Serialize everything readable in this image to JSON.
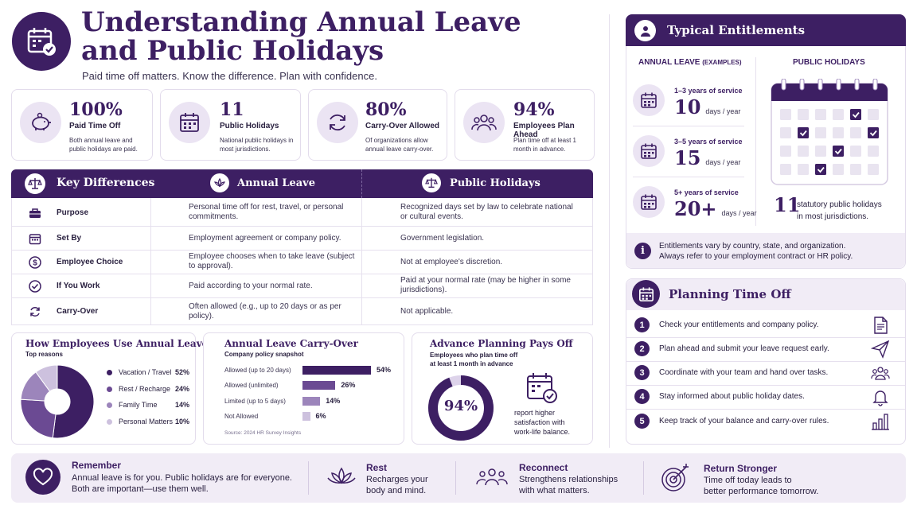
{
  "header": {
    "title_line1": "Understanding Annual Leave",
    "title_line2": "and Public Holidays",
    "subtitle": "Paid time off matters. Know the difference. Plan with confidence."
  },
  "stats": [
    {
      "value": "100%",
      "title": "Paid Time Off",
      "desc": "Both annual leave and public holidays are paid.",
      "icon": "piggy-bank-icon"
    },
    {
      "value": "11",
      "title": "Public Holidays",
      "desc": "National public holidays in most jurisdictions.",
      "icon": "calendar-icon"
    },
    {
      "value": "80%",
      "title": "Carry-Over Allowed",
      "desc": "Of organizations allow annual leave carry-over.",
      "icon": "refresh-icon"
    },
    {
      "value": "94%",
      "title": "Employees Plan Ahead",
      "desc": "Plan time off at least 1 month in advance.",
      "icon": "people-icon"
    }
  ],
  "differences": {
    "title": "Key Differences",
    "col1_header": "Annual Leave",
    "col2_header": "Public Holidays",
    "rows": [
      {
        "label": "Purpose",
        "icon": "briefcase-icon",
        "annual": "Personal time off for rest, travel, or personal commitments.",
        "public": "Recognized days set by law to celebrate national or cultural events."
      },
      {
        "label": "Set By",
        "icon": "calendar-icon",
        "annual": "Employment agreement or company policy.",
        "public": "Government legislation."
      },
      {
        "label": "Employee Choice",
        "icon": "dollar-icon",
        "annual": "Employee chooses when to take leave (subject to approval).",
        "public": "Not at employee's discretion."
      },
      {
        "label": "If You Work",
        "icon": "check-circle-icon",
        "annual": "Paid according to your normal rate.",
        "public": "Paid at your normal rate (may be higher in some jurisdictions)."
      },
      {
        "label": "Carry-Over",
        "icon": "refresh-icon",
        "annual": "Often allowed (e.g., up to 20 days or as per policy).",
        "public": "Not applicable."
      }
    ]
  },
  "usage_chart": {
    "title": "How Employees Use Annual Leave",
    "subtitle": "Top reasons",
    "colors": [
      "#3d1f63",
      "#6b4a93",
      "#9c85bb",
      "#cdc1de"
    ]
  },
  "carryover_chart": {
    "title": "Annual Leave Carry-Over",
    "subtitle": "Company policy snapshot",
    "source": "Source: 2024 HR Survey Insights",
    "colors": [
      "#3d1f63",
      "#6b4a93",
      "#9c85bb",
      "#cdc1de"
    ]
  },
  "planning_chart": {
    "title": "Advance Planning Pays Off",
    "subtitle_line1": "Employees who plan time off",
    "subtitle_line2": "at least 1 month in advance",
    "value_label": "94%",
    "note_line1": "report higher",
    "note_line2": "satisfaction with",
    "note_line3": "work-life balance."
  },
  "chart_data": [
    {
      "type": "pie",
      "title": "How Employees Use Annual Leave",
      "subtitle": "Top reasons",
      "categories": [
        "Vacation / Travel",
        "Rest / Recharge",
        "Family Time",
        "Personal Matters"
      ],
      "values": [
        52,
        24,
        14,
        10
      ],
      "value_labels": [
        "52%",
        "24%",
        "14%",
        "10%"
      ],
      "legend": "right"
    },
    {
      "type": "bar",
      "orientation": "horizontal",
      "title": "Annual Leave Carry-Over",
      "subtitle": "Company policy snapshot",
      "categories": [
        "Allowed (up to 20 days)",
        "Allowed (unlimited)",
        "Limited (up to 5 days)",
        "Not Allowed"
      ],
      "values": [
        54,
        26,
        14,
        6
      ],
      "value_labels": [
        "54%",
        "26%",
        "14%",
        "6%"
      ],
      "xlim": [
        0,
        54
      ]
    },
    {
      "type": "pie",
      "title": "Advance Planning Pays Off",
      "categories": [
        "Plan ahead"
      ],
      "values": [
        94
      ],
      "center_label": "94%"
    }
  ],
  "entitlements": {
    "title": "Typical Entitlements",
    "annual_header": "ANNUAL LEAVE",
    "annual_header_small": "(EXAMPLES)",
    "public_header": "PUBLIC HOLIDAYS",
    "tiers": [
      {
        "label": "1–3 years of service",
        "value": "10",
        "unit": "days / year"
      },
      {
        "label": "3–5 years of service",
        "value": "15",
        "unit": "days / year"
      },
      {
        "label": "5+ years of service",
        "value": "20+",
        "unit": "days / year"
      }
    ],
    "holiday_count": "11",
    "holiday_text_line1": "statutory public holidays",
    "holiday_text_line2": "in most jurisdictions.",
    "note_line1": "Entitlements vary by country, state, and organization.",
    "note_line2": "Always refer to your employment contract or HR policy."
  },
  "planning": {
    "title": "Planning Time Off",
    "steps": [
      {
        "num": "1",
        "text": "Check your entitlements and company policy.",
        "icon": "document-icon"
      },
      {
        "num": "2",
        "text": "Plan ahead and submit your leave request early.",
        "icon": "paper-plane-icon"
      },
      {
        "num": "3",
        "text": "Coordinate with your team and hand over tasks.",
        "icon": "team-icon"
      },
      {
        "num": "4",
        "text": "Stay informed about public holiday dates.",
        "icon": "bell-icon"
      },
      {
        "num": "5",
        "text": "Keep track of your balance and carry-over rules.",
        "icon": "bar-chart-icon"
      }
    ]
  },
  "footer": {
    "remember_title": "Remember",
    "remember_line1": "Annual leave is for you. Public holidays are for everyone.",
    "remember_line2": "Both are important—use them well.",
    "items": [
      {
        "title": "Rest",
        "line1": "Recharges your",
        "line2": "body and mind.",
        "icon": "lotus-icon"
      },
      {
        "title": "Reconnect",
        "line1": "Strengthens relationships",
        "line2": "with what matters.",
        "icon": "people-icon"
      },
      {
        "title": "Return Stronger",
        "line1": "Time off today leads to",
        "line2": "better performance tomorrow.",
        "icon": "target-icon"
      }
    ]
  }
}
